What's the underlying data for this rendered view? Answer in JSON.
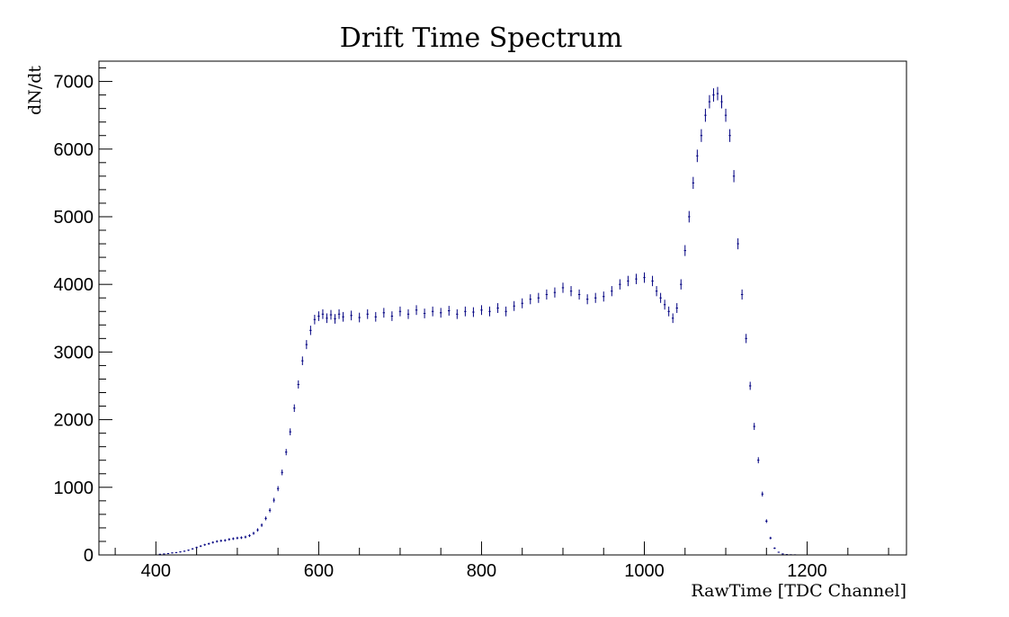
{
  "chart_data": {
    "type": "scatter",
    "title": "Drift Time Spectrum",
    "xlabel": "RawTime   [TDC Channel]",
    "ylabel": "dN/dt",
    "xlim": [
      330,
      1322
    ],
    "ylim": [
      0,
      7300
    ],
    "x_ticks": [
      400,
      600,
      800,
      1000,
      1200
    ],
    "y_ticks": [
      0,
      1000,
      2000,
      3000,
      4000,
      5000,
      6000,
      7000
    ],
    "x_minor_step": 50,
    "y_minor_step": 200,
    "grid": false,
    "legend": "none",
    "marker_color": "#000080",
    "series": [
      {
        "x": [
          405,
          410,
          415,
          420,
          425,
          430,
          435,
          440,
          445,
          450,
          455,
          460,
          465,
          470,
          475,
          480,
          485,
          490,
          495,
          500,
          505,
          510,
          515,
          520,
          525,
          530,
          535,
          540,
          545,
          550,
          555,
          560,
          565,
          570,
          575,
          580,
          585,
          590,
          595,
          600,
          605,
          610,
          615,
          620,
          625,
          630,
          640,
          650,
          660,
          670,
          680,
          690,
          700,
          710,
          720,
          730,
          740,
          750,
          760,
          770,
          780,
          790,
          800,
          810,
          820,
          830,
          840,
          850,
          860,
          870,
          880,
          890,
          900,
          910,
          920,
          930,
          940,
          950,
          960,
          970,
          980,
          990,
          1000,
          1010,
          1015,
          1020,
          1025,
          1030,
          1035,
          1040,
          1045,
          1050,
          1055,
          1060,
          1065,
          1070,
          1075,
          1080,
          1085,
          1090,
          1095,
          1100,
          1105,
          1110,
          1115,
          1120,
          1125,
          1130,
          1135,
          1140,
          1145,
          1150,
          1155,
          1160,
          1165,
          1170,
          1175,
          1180,
          1185
        ],
        "y": [
          10,
          15,
          20,
          30,
          35,
          45,
          55,
          70,
          90,
          110,
          130,
          150,
          165,
          185,
          200,
          210,
          215,
          230,
          240,
          250,
          255,
          265,
          285,
          320,
          370,
          440,
          540,
          660,
          810,
          980,
          1220,
          1520,
          1820,
          2170,
          2520,
          2870,
          3110,
          3320,
          3480,
          3530,
          3560,
          3500,
          3550,
          3490,
          3560,
          3520,
          3540,
          3510,
          3560,
          3520,
          3580,
          3530,
          3600,
          3560,
          3620,
          3570,
          3600,
          3580,
          3610,
          3560,
          3600,
          3590,
          3620,
          3600,
          3650,
          3600,
          3680,
          3720,
          3780,
          3800,
          3850,
          3880,
          3950,
          3900,
          3850,
          3780,
          3800,
          3820,
          3900,
          4000,
          4050,
          4080,
          4100,
          4050,
          3900,
          3800,
          3700,
          3600,
          3500,
          3650,
          4000,
          4500,
          5000,
          5500,
          5900,
          6200,
          6500,
          6700,
          6800,
          6820,
          6700,
          6500,
          6200,
          5600,
          4600,
          3850,
          3200,
          2500,
          1900,
          1400,
          900,
          500,
          250,
          100,
          40,
          15,
          6,
          3,
          2
        ]
      }
    ]
  }
}
